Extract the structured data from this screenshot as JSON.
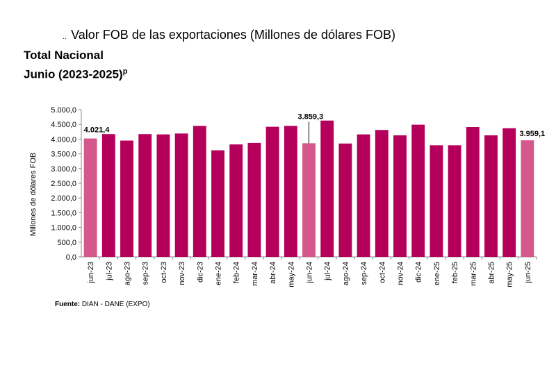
{
  "header": {
    "title_prefix": "..",
    "title": "Valor FOB de las exportaciones (Millones de dólares FOB)",
    "subtitle1": "Total Nacional",
    "subtitle2": "Junio (2023-2025)",
    "subtitle2_sup": "p"
  },
  "source": {
    "label": "Fuente:",
    "text": "DIAN - DANE (EXPO)"
  },
  "colors": {
    "bar_main": "#B5005B",
    "bar_highlight": "#D4588C",
    "axis": "#888888"
  },
  "chart_data": {
    "type": "bar",
    "title": "Valor FOB de las exportaciones (Millones de dólares FOB)",
    "ylabel": "Millones de dólares FOB",
    "xlabel": "",
    "ylim": [
      0,
      5000
    ],
    "yticks": [
      "0,0",
      "500,0",
      "1.000,0",
      "1.500,0",
      "2.000,0",
      "2.500,0",
      "3.000,0",
      "3.500,0",
      "4.000,0",
      "4.500,0",
      "5.000,0"
    ],
    "grid": false,
    "categories": [
      "jun-23",
      "jul-23",
      "ago-23",
      "sep-23",
      "oct-23",
      "nov-23",
      "dic-23",
      "ene-24",
      "feb-24",
      "mar-24",
      "abr-24",
      "may-24",
      "jun-24",
      "jul-24",
      "ago-24",
      "sep-24",
      "oct-24",
      "nov-24",
      "dic-24",
      "ene-25",
      "feb-25",
      "mar-25",
      "abr-25",
      "may-25",
      "jun-25"
    ],
    "values": [
      4021.4,
      4170,
      3950,
      4170,
      4160,
      4190,
      4450,
      3620,
      3820,
      3870,
      4420,
      4450,
      3859.3,
      4630,
      3850,
      4160,
      4310,
      4130,
      4490,
      3790,
      3790,
      4410,
      4130,
      4370,
      3959.1
    ],
    "highlighted": [
      "jun-23",
      "jun-24",
      "jun-25"
    ],
    "data_labels": [
      {
        "category": "jun-23",
        "text": "4.021,4"
      },
      {
        "category": "jun-24",
        "text": "3.859,3"
      },
      {
        "category": "jun-25",
        "text": "3.959,1"
      }
    ]
  }
}
